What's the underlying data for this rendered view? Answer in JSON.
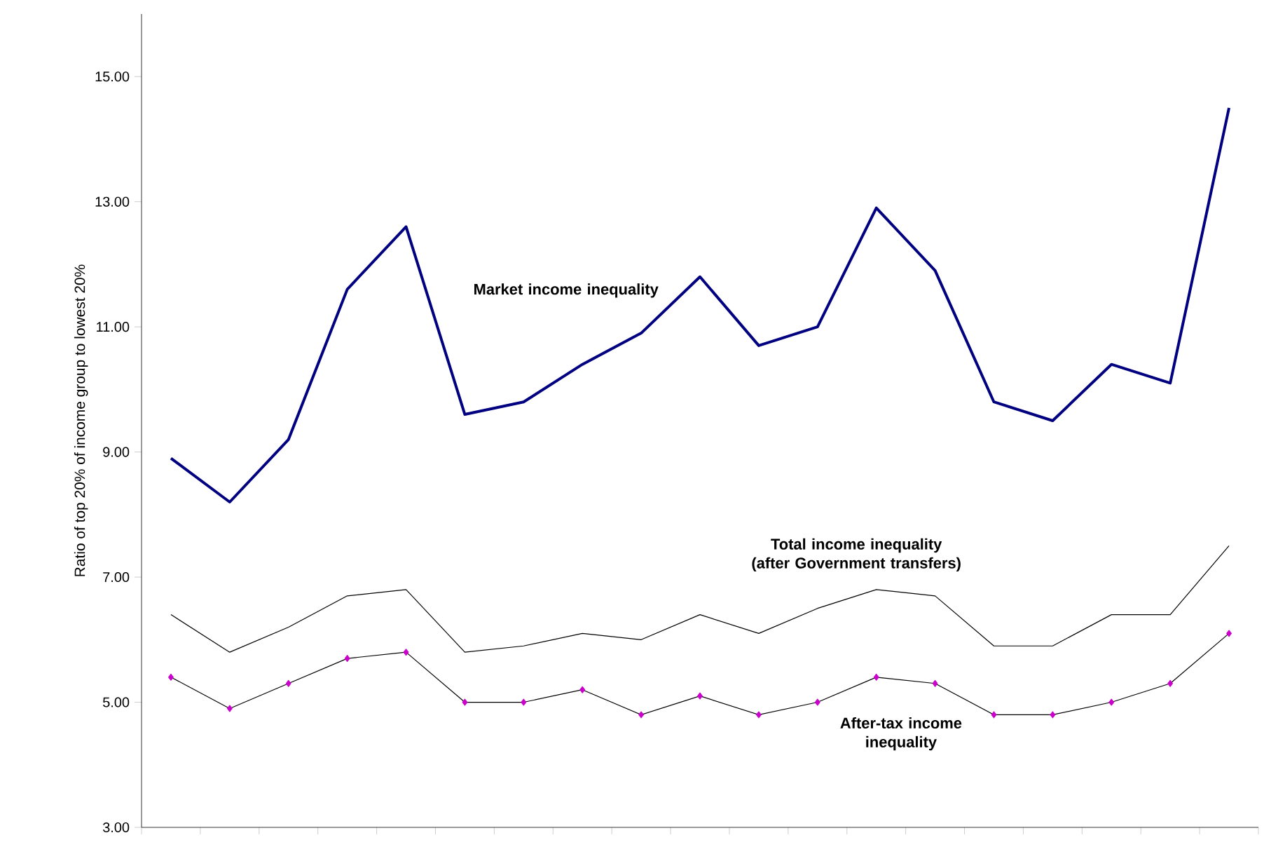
{
  "chart_data": {
    "type": "line",
    "ylabel": "Ratio of top 20% of income group to lowest 20%",
    "categories": [
      null,
      null,
      null,
      null,
      null,
      null,
      null,
      null,
      null,
      null,
      null,
      null,
      null,
      null,
      null,
      null,
      null,
      null,
      null
    ],
    "series": [
      {
        "name": "Market income inequality",
        "color": "#000080",
        "marker": "none",
        "values": [
          8.9,
          8.2,
          9.2,
          11.6,
          12.6,
          9.6,
          9.8,
          10.4,
          10.9,
          11.8,
          10.7,
          11.0,
          12.9,
          11.9,
          9.8,
          9.5,
          10.4,
          10.1,
          14.5
        ]
      },
      {
        "name": "Total income inequality (after Government transfers)",
        "color": "#000000",
        "marker": "none",
        "values": [
          6.4,
          5.8,
          6.2,
          6.7,
          6.8,
          5.8,
          5.9,
          6.1,
          6.0,
          6.4,
          6.1,
          6.5,
          6.8,
          6.7,
          5.9,
          5.9,
          6.4,
          6.4,
          7.5
        ]
      },
      {
        "name": "After-tax income inequality",
        "color": "#000000",
        "marker": "diamond",
        "values": [
          5.4,
          4.9,
          5.3,
          5.7,
          5.8,
          5.0,
          5.0,
          5.2,
          4.8,
          5.1,
          4.8,
          5.0,
          5.4,
          5.3,
          4.8,
          4.8,
          5.0,
          5.3,
          6.1
        ]
      }
    ],
    "ylim": [
      3,
      16
    ],
    "yticks": [
      {
        "value": 3,
        "label": "3.00"
      },
      {
        "value": 5,
        "label": "5.00"
      },
      {
        "value": 7,
        "label": "7.00"
      },
      {
        "value": 9,
        "label": "9.00"
      },
      {
        "value": 11,
        "label": "11.00"
      },
      {
        "value": 13,
        "label": "13.00"
      },
      {
        "value": 15,
        "label": "15.00"
      }
    ],
    "grid": false,
    "legend": false,
    "tick_labels": "y"
  }
}
